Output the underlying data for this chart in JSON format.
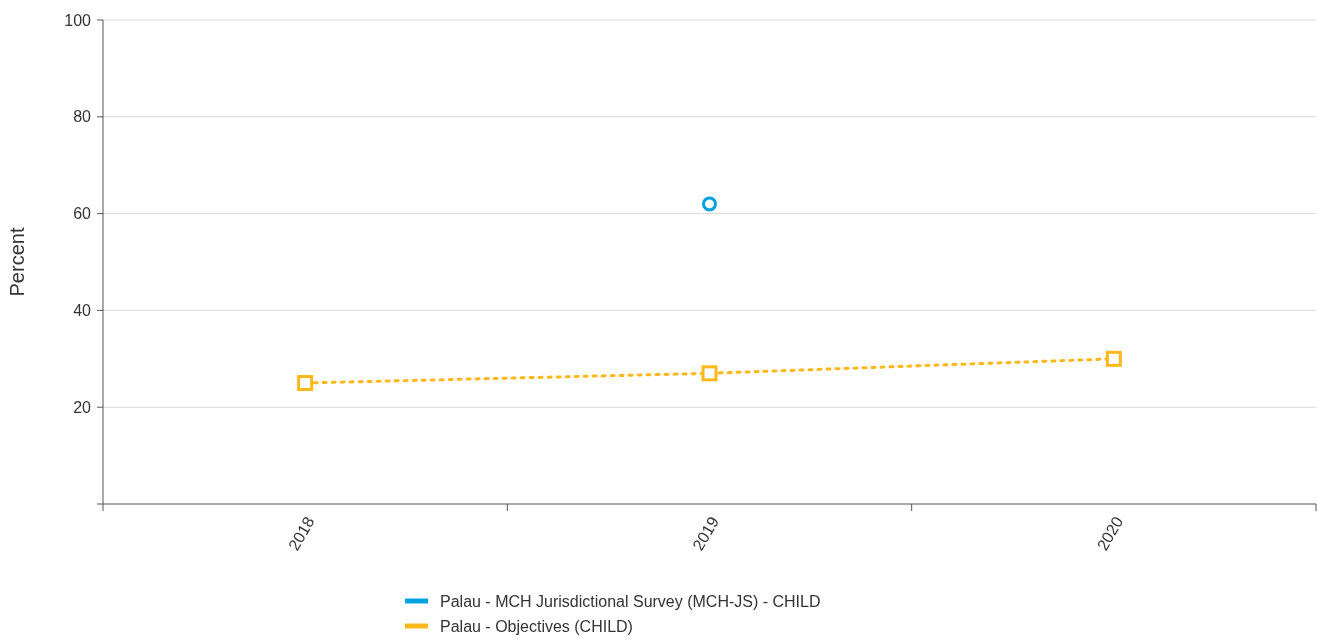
{
  "chart_data": {
    "type": "line",
    "ylabel": "Percent",
    "categories": [
      "2018",
      "2019",
      "2020"
    ],
    "series": [
      {
        "name": "Palau - MCH Jurisdictional Survey (MCH-JS) - CHILD",
        "color": "#00a3e0",
        "values": [
          null,
          62,
          null
        ],
        "marker": "circle",
        "line_style": "solid"
      },
      {
        "name": "Palau - Objectives (CHILD)",
        "color": "#ffb81c",
        "values": [
          25,
          27,
          30
        ],
        "marker": "square",
        "line_style": "dotted"
      }
    ],
    "ylim": [
      0,
      100
    ],
    "yticks": [
      {
        "value": 0,
        "label": null
      },
      20,
      40,
      60,
      80,
      100
    ],
    "grid": "y",
    "legend": "bottom"
  }
}
